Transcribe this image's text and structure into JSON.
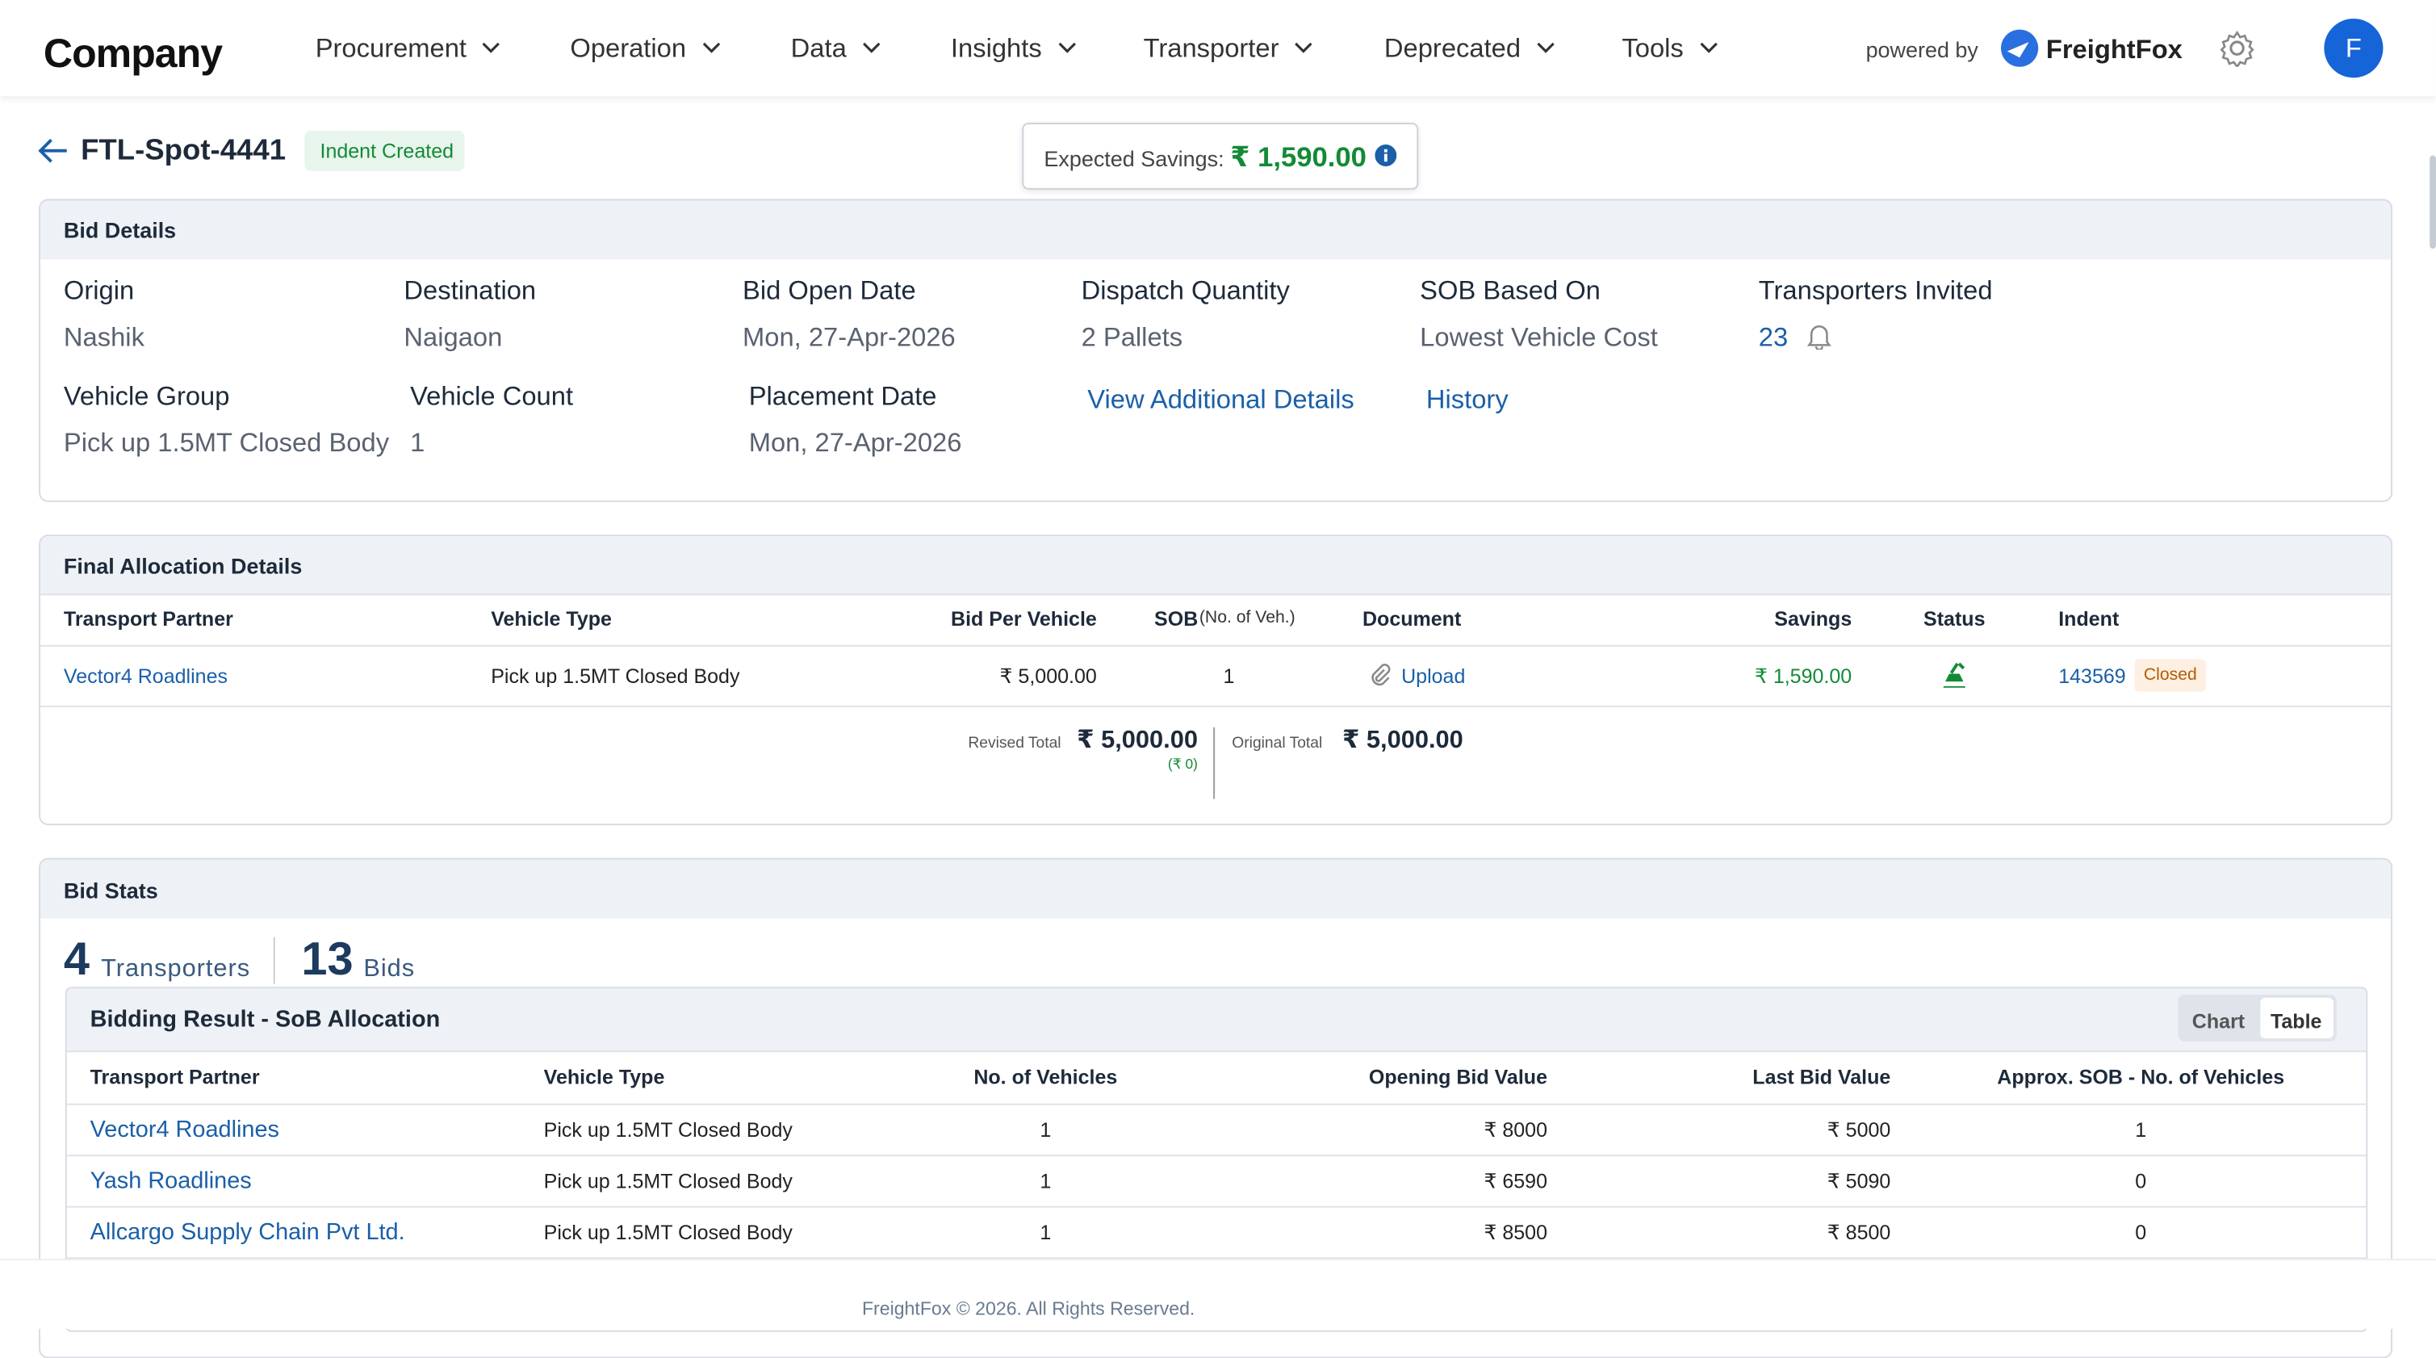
{
  "nav": {
    "logo": "Company",
    "menu": [
      "Procurement",
      "Operation",
      "Data",
      "Insights",
      "Transporter",
      "Deprecated",
      "Tools"
    ],
    "powered_by": "powered by",
    "brand": "FreightFox",
    "avatar": "F"
  },
  "header": {
    "title": "FTL-Spot-4441",
    "status": "Indent Created",
    "savings_label": "Expected Savings:",
    "savings_value": "₹ 1,590.00"
  },
  "bid_details": {
    "title": "Bid Details",
    "fields": [
      {
        "label": "Origin",
        "value": "Nashik"
      },
      {
        "label": "Destination",
        "value": "Naigaon"
      },
      {
        "label": "Bid Open Date",
        "value": "Mon, 27-Apr-2026"
      },
      {
        "label": "Dispatch Quantity",
        "value": "2 Pallets"
      },
      {
        "label": "SOB Based On",
        "value": "Lowest Vehicle Cost"
      },
      {
        "label": "Transporters Invited",
        "value": "23"
      },
      {
        "label": "Vehicle Group",
        "value": "Pick up 1.5MT Closed Body"
      },
      {
        "label": "Vehicle Count",
        "value": "1"
      },
      {
        "label": "Placement Date",
        "value": "Mon, 27-Apr-2026"
      }
    ],
    "links": [
      "View Additional Details",
      "History"
    ]
  },
  "final_allocation": {
    "title": "Final Allocation Details",
    "columns": [
      "Transport Partner",
      "Vehicle Type",
      "Bid Per Vehicle",
      "SOB",
      "Document",
      "Savings",
      "Status",
      "Indent"
    ],
    "sob_note": "(No. of Veh.)",
    "rows": [
      {
        "partner": "Vector4 Roadlines",
        "vehicle_type": "Pick up 1.5MT Closed Body",
        "bid_per_vehicle": "₹ 5,000.00",
        "sob": "1",
        "document": "Upload",
        "savings": "₹ 1,590.00",
        "indent": "143569",
        "indent_status": "Closed"
      }
    ],
    "revised_label": "Revised Total",
    "revised_value": "₹ 5,000.00",
    "revised_diff": "(₹ 0)",
    "original_label": "Original Total",
    "original_value": "₹ 5,000.00"
  },
  "bid_stats": {
    "title": "Bid Stats",
    "transporters_count": "4",
    "transporters_label": "Transporters",
    "bids_count": "13",
    "bids_label": "Bids"
  },
  "bidding_result": {
    "title": "Bidding Result - SoB Allocation",
    "toggle": [
      "Chart",
      "Table"
    ],
    "columns": [
      "Transport Partner",
      "Vehicle Type",
      "No. of Vehicles",
      "Opening Bid Value",
      "Last Bid Value",
      "Approx. SOB - No. of Vehicles"
    ],
    "rows": [
      [
        "Vector4 Roadlines",
        "Pick up 1.5MT Closed Body",
        "1",
        "₹ 8000",
        "₹ 5000",
        "1"
      ],
      [
        "Yash Roadlines",
        "Pick up 1.5MT Closed Body",
        "1",
        "₹ 6590",
        "₹ 5090",
        "0"
      ],
      [
        "Allcargo Supply Chain Pvt Ltd.",
        "Pick up 1.5MT Closed Body",
        "1",
        "₹ 8500",
        "₹ 8500",
        "0"
      ]
    ]
  },
  "footer": {
    "text": "FreightFox © 2026. All Rights Reserved."
  }
}
